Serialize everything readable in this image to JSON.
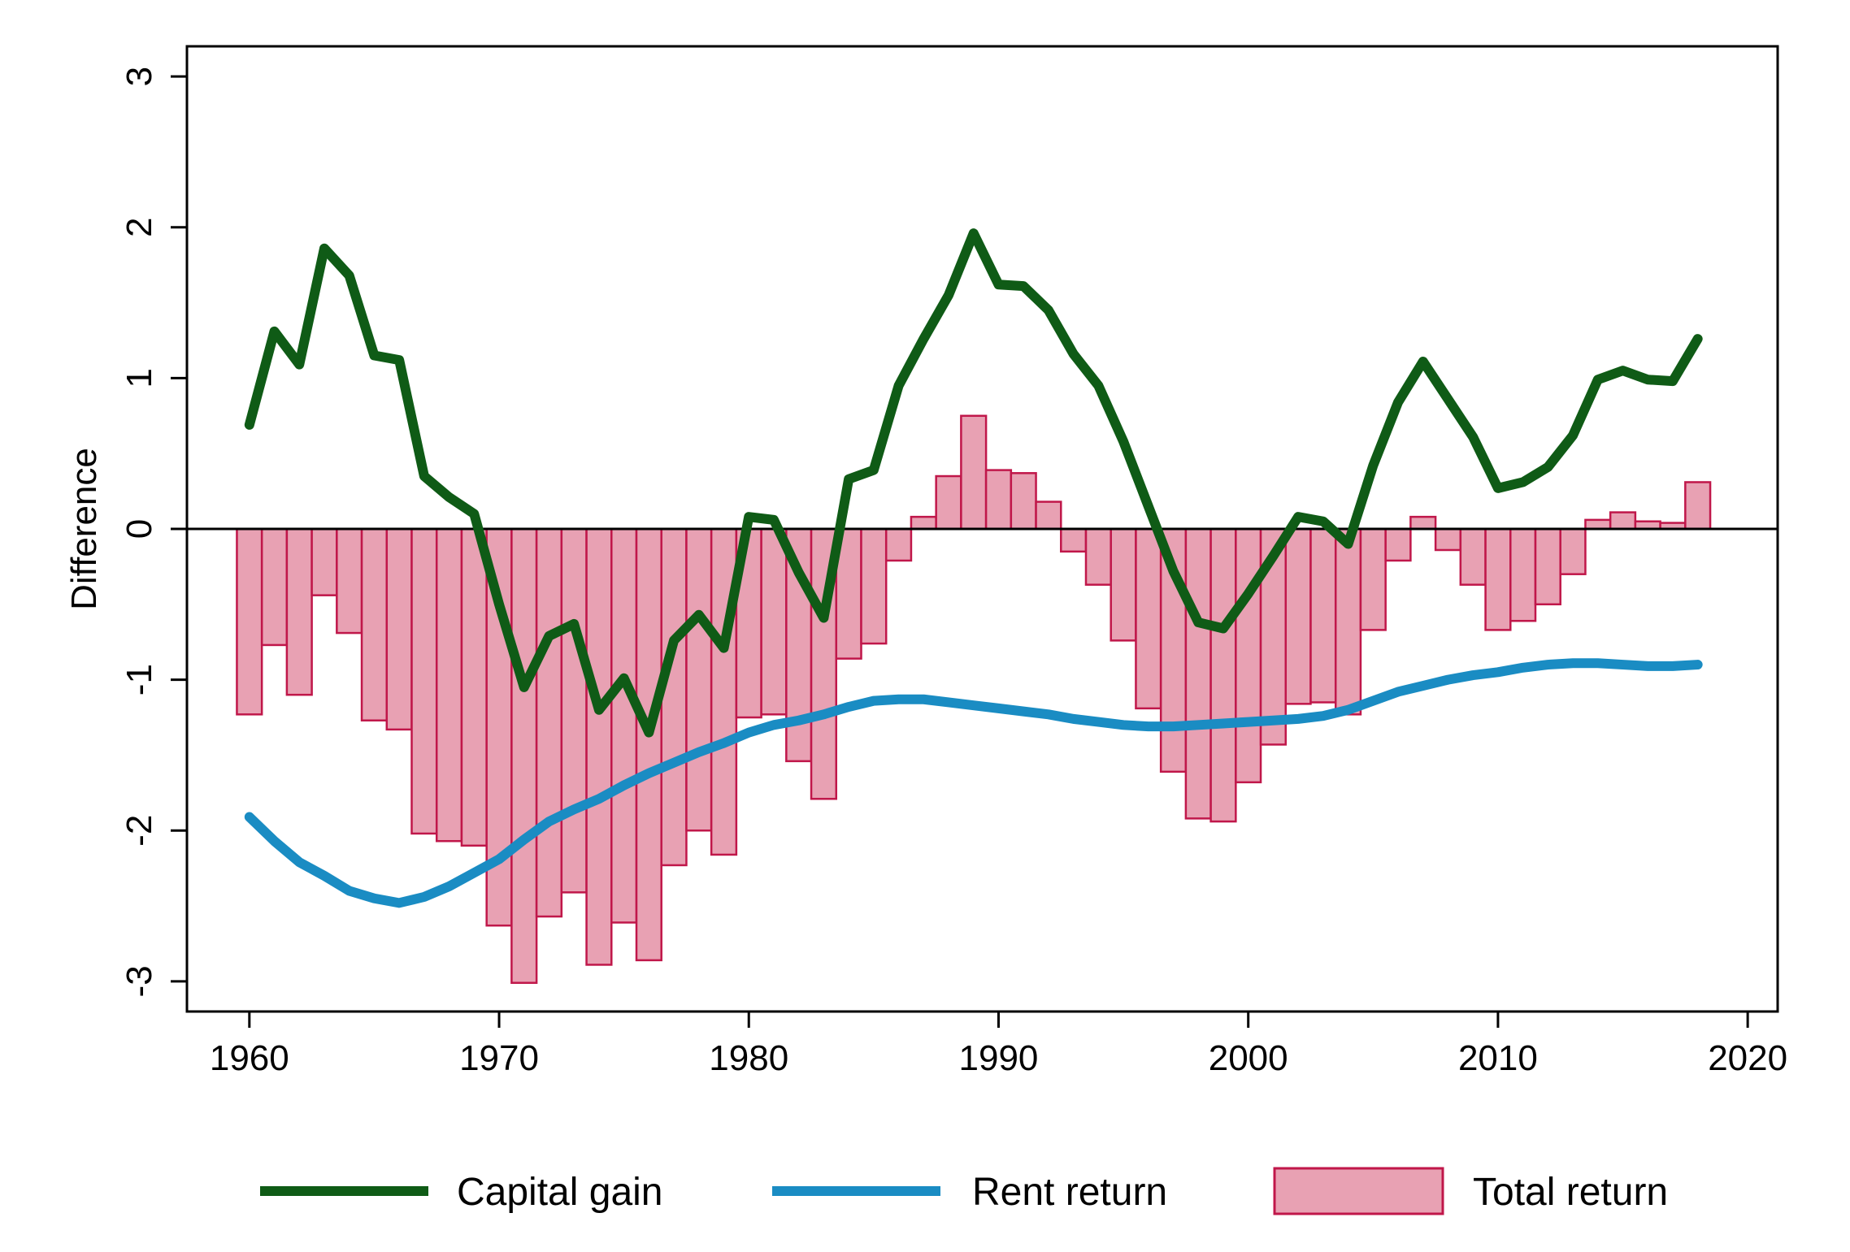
{
  "chart_data": {
    "type": "bar",
    "title": "",
    "xlabel": "",
    "ylabel": "Difference",
    "xlim": [
      1957.5,
      2021.2
    ],
    "ylim": [
      -3.2,
      3.2
    ],
    "xticks": [
      1960,
      1970,
      1980,
      1990,
      2000,
      2010,
      2020
    ],
    "yticks": [
      -3,
      -2,
      -1,
      0,
      1,
      2,
      3
    ],
    "grid": false,
    "legend_position": "bottom",
    "x": [
      1960,
      1961,
      1962,
      1963,
      1964,
      1965,
      1966,
      1967,
      1968,
      1969,
      1970,
      1971,
      1972,
      1973,
      1974,
      1975,
      1976,
      1977,
      1978,
      1979,
      1980,
      1981,
      1982,
      1983,
      1984,
      1985,
      1986,
      1987,
      1988,
      1989,
      1990,
      1991,
      1992,
      1993,
      1994,
      1995,
      1996,
      1997,
      1998,
      1999,
      2000,
      2001,
      2002,
      2003,
      2004,
      2005,
      2006,
      2007,
      2008,
      2009,
      2010,
      2011,
      2012,
      2013,
      2014,
      2015,
      2016,
      2017,
      2018
    ],
    "series": [
      {
        "name": "Capital gain",
        "kind": "line",
        "color": "#0f5b16",
        "values": [
          0.69,
          1.31,
          1.09,
          1.86,
          1.68,
          1.15,
          1.12,
          0.35,
          0.21,
          0.1,
          -0.5,
          -1.05,
          -0.71,
          -0.63,
          -1.2,
          -0.99,
          -1.35,
          -0.74,
          -0.57,
          -0.79,
          0.08,
          0.06,
          -0.29,
          -0.59,
          0.33,
          0.39,
          0.95,
          1.26,
          1.55,
          1.96,
          1.62,
          1.61,
          1.45,
          1.16,
          0.95,
          0.58,
          0.15,
          -0.28,
          -0.62,
          -0.66,
          -0.43,
          -0.18,
          0.08,
          0.05,
          -0.1,
          0.42,
          0.84,
          1.11,
          0.86,
          0.61,
          0.27,
          0.31,
          0.41,
          0.62,
          0.99,
          1.05,
          0.99,
          0.98,
          1.26
        ]
      },
      {
        "name": "Rent return",
        "kind": "line",
        "color": "#1a8cc3",
        "values": [
          -1.91,
          -2.07,
          -2.21,
          -2.3,
          -2.4,
          -2.45,
          -2.48,
          -2.44,
          -2.37,
          -2.28,
          -2.19,
          -2.06,
          -1.94,
          -1.86,
          -1.79,
          -1.7,
          -1.62,
          -1.55,
          -1.48,
          -1.42,
          -1.35,
          -1.3,
          -1.27,
          -1.23,
          -1.18,
          -1.14,
          -1.13,
          -1.13,
          -1.15,
          -1.17,
          -1.19,
          -1.21,
          -1.23,
          -1.26,
          -1.28,
          -1.3,
          -1.31,
          -1.31,
          -1.3,
          -1.29,
          -1.28,
          -1.27,
          -1.26,
          -1.24,
          -1.2,
          -1.14,
          -1.08,
          -1.04,
          -1.0,
          -0.97,
          -0.95,
          -0.92,
          -0.9,
          -0.89,
          -0.89,
          -0.9,
          -0.91,
          -0.91,
          -0.9
        ]
      },
      {
        "name": "Total return",
        "kind": "bar",
        "color": "#e8a1b3",
        "edge_color": "#c0174a",
        "values": [
          -1.23,
          -0.77,
          -1.1,
          -0.44,
          -0.69,
          -1.27,
          -1.33,
          -2.02,
          -2.07,
          -2.1,
          -2.63,
          -3.01,
          -2.57,
          -2.41,
          -2.89,
          -2.61,
          -2.86,
          -2.23,
          -2.0,
          -2.16,
          -1.25,
          -1.23,
          -1.54,
          -1.79,
          -0.86,
          -0.76,
          -0.21,
          0.08,
          0.35,
          0.75,
          0.39,
          0.37,
          0.18,
          -0.15,
          -0.37,
          -0.74,
          -1.19,
          -1.61,
          -1.92,
          -1.94,
          -1.68,
          -1.43,
          -1.16,
          -1.15,
          -1.23,
          -0.67,
          -0.21,
          0.08,
          -0.14,
          -0.37,
          -0.67,
          -0.61,
          -0.5,
          -0.3,
          0.06,
          0.11,
          0.05,
          0.04,
          0.31
        ]
      }
    ],
    "legend": [
      "Capital gain",
      "Rent return",
      "Total return"
    ]
  }
}
